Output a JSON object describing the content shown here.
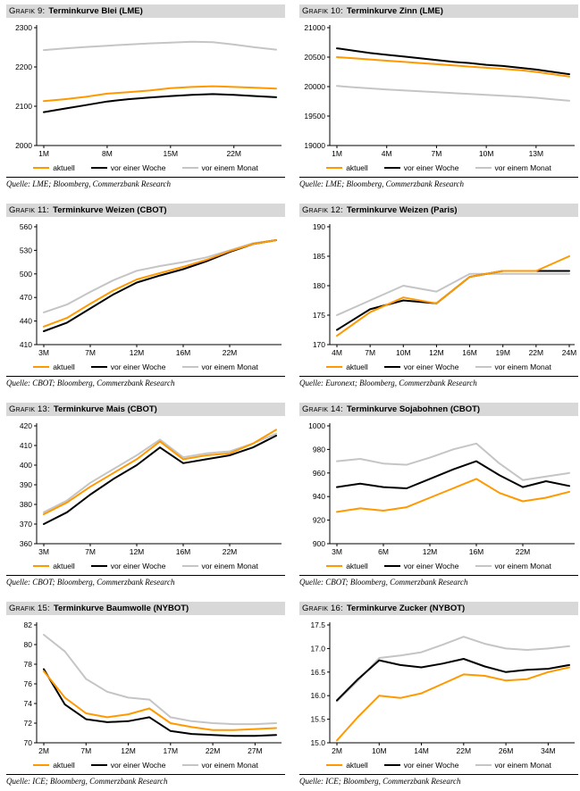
{
  "colors": {
    "accent_orange": "#FF9900",
    "series_black": "#000000",
    "series_gray": "#C5C5C5",
    "header_bg": "#D8D8D8"
  },
  "legend_labels": [
    "aktuell",
    "vor einer Woche",
    "vor einem Monat"
  ],
  "chart_data": [
    {
      "id": "grafik-9",
      "type": "line",
      "header_label": "Grafik 9:",
      "title": "Terminkurve Blei (LME)",
      "source": "Quelle: LME; Bloomberg, Commerzbank Research",
      "ylim": [
        2000,
        2300
      ],
      "yticks": [
        "2000",
        "2100",
        "2200",
        "2300"
      ],
      "xticks": [
        {
          "i": 0,
          "label": "1M"
        },
        {
          "i": 3,
          "label": "8M"
        },
        {
          "i": 6,
          "label": "15M"
        },
        {
          "i": 9,
          "label": "22M"
        }
      ],
      "series": [
        {
          "name": "aktuell",
          "color": "#FF9900",
          "values": [
            2113,
            2118,
            2124,
            2132,
            2136,
            2140,
            2146,
            2149,
            2151,
            2149,
            2147,
            2145
          ]
        },
        {
          "name": "vor einer Woche",
          "color": "#000000",
          "values": [
            2085,
            2094,
            2103,
            2112,
            2118,
            2122,
            2126,
            2129,
            2131,
            2129,
            2126,
            2123
          ]
        },
        {
          "name": "vor einem Monat",
          "color": "#C5C5C5",
          "values": [
            2243,
            2247,
            2251,
            2254,
            2257,
            2260,
            2262,
            2264,
            2263,
            2257,
            2250,
            2244
          ]
        }
      ]
    },
    {
      "id": "grafik-10",
      "type": "line",
      "header_label": "Grafik 10:",
      "title": "Terminkurve Zinn (LME)",
      "source": "Quelle: LME; Bloomberg, Commerzbank Research",
      "ylim": [
        19000,
        21000
      ],
      "yticks": [
        "19000",
        "19500",
        "20000",
        "20500",
        "21000"
      ],
      "xticks": [
        {
          "i": 0,
          "label": "1M"
        },
        {
          "i": 3,
          "label": "4M"
        },
        {
          "i": 6,
          "label": "7M"
        },
        {
          "i": 9,
          "label": "10M"
        },
        {
          "i": 12,
          "label": "13M"
        }
      ],
      "series": [
        {
          "name": "aktuell",
          "color": "#FF9900",
          "values": [
            20500,
            20480,
            20460,
            20440,
            20420,
            20400,
            20380,
            20360,
            20340,
            20320,
            20300,
            20280,
            20250,
            20210,
            20170
          ]
        },
        {
          "name": "vor einer Woche",
          "color": "#000000",
          "values": [
            20650,
            20610,
            20570,
            20540,
            20510,
            20480,
            20450,
            20420,
            20400,
            20370,
            20350,
            20320,
            20290,
            20250,
            20210
          ]
        },
        {
          "name": "vor einem Monat",
          "color": "#C5C5C5",
          "values": [
            20010,
            19990,
            19970,
            19950,
            19935,
            19920,
            19905,
            19890,
            19875,
            19860,
            19845,
            19830,
            19810,
            19785,
            19760
          ]
        }
      ]
    },
    {
      "id": "grafik-11",
      "type": "line",
      "header_label": "Grafik 11:",
      "title": "Terminkurve Weizen (CBOT)",
      "source": "Quelle: CBOT; Bloomberg, Commerzbank Research",
      "ylim": [
        410,
        560
      ],
      "yticks": [
        "410",
        "440",
        "470",
        "500",
        "530",
        "560"
      ],
      "xticks": [
        {
          "i": 0,
          "label": "3M"
        },
        {
          "i": 2,
          "label": "7M"
        },
        {
          "i": 4,
          "label": "12M"
        },
        {
          "i": 6,
          "label": "16M"
        },
        {
          "i": 8,
          "label": "22M"
        }
      ],
      "series": [
        {
          "name": "aktuell",
          "color": "#FF9900",
          "values": [
            433,
            444,
            462,
            479,
            493,
            501,
            509,
            518,
            529,
            538,
            543
          ]
        },
        {
          "name": "vor einer Woche",
          "color": "#000000",
          "values": [
            427,
            438,
            456,
            474,
            489,
            498,
            506,
            516,
            528,
            538,
            543
          ]
        },
        {
          "name": "vor einem Monat",
          "color": "#C5C5C5",
          "values": [
            451,
            461,
            477,
            492,
            504,
            510,
            515,
            521,
            530,
            539,
            543
          ]
        }
      ]
    },
    {
      "id": "grafik-12",
      "type": "line",
      "header_label": "Grafik 12:",
      "title": "Terminkurve Weizen (Paris)",
      "source": "Quelle: Euronext; Bloomberg, Commerzbank Research",
      "ylim": [
        170,
        190
      ],
      "yticks": [
        "170",
        "175",
        "180",
        "185",
        "190"
      ],
      "xticks": [
        {
          "i": 0,
          "label": "4M"
        },
        {
          "i": 1,
          "label": "7M"
        },
        {
          "i": 2,
          "label": "10M"
        },
        {
          "i": 3,
          "label": "12M"
        },
        {
          "i": 4,
          "label": "16M"
        },
        {
          "i": 5,
          "label": "19M"
        },
        {
          "i": 6,
          "label": "22M"
        },
        {
          "i": 7,
          "label": "24M"
        }
      ],
      "series": [
        {
          "name": "aktuell",
          "color": "#FF9900",
          "values": [
            171.5,
            175.5,
            178.0,
            177.0,
            181.5,
            182.5,
            182.5,
            185.0
          ]
        },
        {
          "name": "vor einer Woche",
          "color": "#000000",
          "values": [
            172.5,
            176.0,
            177.5,
            177.0,
            181.5,
            182.5,
            182.5,
            182.5
          ]
        },
        {
          "name": "vor einem Monat",
          "color": "#C5C5C5",
          "values": [
            175.0,
            177.5,
            180.0,
            179.0,
            182.0,
            182.0,
            182.0,
            182.0
          ]
        }
      ]
    },
    {
      "id": "grafik-13",
      "type": "line",
      "header_label": "Grafik 13:",
      "title": "Terminkurve Mais (CBOT)",
      "source": "Quelle: CBOT; Bloomberg, Commerzbank Research",
      "ylim": [
        360,
        420
      ],
      "yticks": [
        "360",
        "370",
        "380",
        "390",
        "400",
        "410",
        "420"
      ],
      "xticks": [
        {
          "i": 0,
          "label": "3M"
        },
        {
          "i": 2,
          "label": "7M"
        },
        {
          "i": 4,
          "label": "12M"
        },
        {
          "i": 6,
          "label": "16M"
        },
        {
          "i": 8,
          "label": "22M"
        }
      ],
      "series": [
        {
          "name": "aktuell",
          "color": "#FF9900",
          "values": [
            375,
            381,
            389,
            396,
            403,
            412,
            403,
            405,
            406,
            411,
            418
          ]
        },
        {
          "name": "vor einer Woche",
          "color": "#000000",
          "values": [
            370,
            376,
            385,
            393,
            400,
            409,
            401,
            403,
            405,
            409,
            415
          ]
        },
        {
          "name": "vor einem Monat",
          "color": "#C5C5C5",
          "values": [
            376,
            382,
            391,
            398,
            405,
            413,
            404,
            406,
            407,
            411,
            416
          ]
        }
      ]
    },
    {
      "id": "grafik-14",
      "type": "line",
      "header_label": "Grafik 14:",
      "title": "Terminkurve Sojabohnen (CBOT)",
      "source": "Quelle: CBOT; Bloomberg, Commerzbank Research",
      "ylim": [
        900,
        1000
      ],
      "yticks": [
        "900",
        "920",
        "940",
        "960",
        "980",
        "1000"
      ],
      "xticks": [
        {
          "i": 0,
          "label": "3M"
        },
        {
          "i": 2,
          "label": "6M"
        },
        {
          "i": 4,
          "label": "12M"
        },
        {
          "i": 6,
          "label": "16M"
        },
        {
          "i": 8,
          "label": "22M"
        }
      ],
      "series": [
        {
          "name": "aktuell",
          "color": "#FF9900",
          "values": [
            927,
            930,
            928,
            931,
            939,
            947,
            955,
            943,
            936,
            939,
            944
          ]
        },
        {
          "name": "vor einer Woche",
          "color": "#000000",
          "values": [
            948,
            951,
            948,
            947,
            955,
            963,
            970,
            958,
            948,
            953,
            949
          ]
        },
        {
          "name": "vor einem Monat",
          "color": "#C5C5C5",
          "values": [
            970,
            972,
            968,
            967,
            973,
            980,
            985,
            968,
            954,
            957,
            960
          ]
        }
      ]
    },
    {
      "id": "grafik-15",
      "type": "line",
      "header_label": "Grafik 15:",
      "title": "Terminkurve Baumwolle (NYBOT)",
      "source": "Quelle: ICE; Bloomberg, Commerzbank Research",
      "ylim": [
        70,
        82
      ],
      "yticks": [
        "70",
        "72",
        "74",
        "76",
        "78",
        "80",
        "82"
      ],
      "xticks": [
        {
          "i": 0,
          "label": "2M"
        },
        {
          "i": 2,
          "label": "7M"
        },
        {
          "i": 4,
          "label": "12M"
        },
        {
          "i": 6,
          "label": "17M"
        },
        {
          "i": 8,
          "label": "22M"
        },
        {
          "i": 10,
          "label": "27M"
        }
      ],
      "series": [
        {
          "name": "aktuell",
          "color": "#FF9900",
          "values": [
            77.3,
            74.6,
            73.0,
            72.6,
            72.9,
            73.5,
            72.0,
            71.6,
            71.3,
            71.3,
            71.4,
            71.5
          ]
        },
        {
          "name": "vor einer Woche",
          "color": "#000000",
          "values": [
            77.5,
            73.9,
            72.4,
            72.1,
            72.2,
            72.6,
            71.2,
            70.9,
            70.8,
            70.7,
            70.7,
            70.8
          ]
        },
        {
          "name": "vor einem Monat",
          "color": "#C5C5C5",
          "values": [
            81.0,
            79.3,
            76.5,
            75.2,
            74.6,
            74.4,
            72.6,
            72.2,
            72.0,
            71.9,
            71.9,
            72.0
          ]
        }
      ]
    },
    {
      "id": "grafik-16",
      "type": "line",
      "header_label": "Grafik 16:",
      "title": "Terminkurve Zucker (NYBOT)",
      "source": "Quelle: ICE; Bloomberg, Commerzbank Research",
      "ylim": [
        15.0,
        17.5
      ],
      "yticks": [
        "15.0",
        "15.5",
        "16.0",
        "16.5",
        "17.0",
        "17.5"
      ],
      "xticks": [
        {
          "i": 0,
          "label": "2M"
        },
        {
          "i": 2,
          "label": "10M"
        },
        {
          "i": 4,
          "label": "14M"
        },
        {
          "i": 6,
          "label": "22M"
        },
        {
          "i": 8,
          "label": "26M"
        },
        {
          "i": 10,
          "label": "34M"
        }
      ],
      "series": [
        {
          "name": "aktuell",
          "color": "#FF9900",
          "values": [
            15.05,
            15.55,
            16.0,
            15.95,
            16.05,
            16.25,
            16.45,
            16.42,
            16.32,
            16.35,
            16.5,
            16.6
          ]
        },
        {
          "name": "vor einer Woche",
          "color": "#000000",
          "values": [
            15.9,
            16.35,
            16.75,
            16.65,
            16.6,
            16.68,
            16.78,
            16.62,
            16.5,
            16.55,
            16.57,
            16.65
          ]
        },
        {
          "name": "vor einem Monat",
          "color": "#C5C5C5",
          "values": [
            15.88,
            16.32,
            16.8,
            16.85,
            16.92,
            17.08,
            17.25,
            17.1,
            17.0,
            16.97,
            17.0,
            17.05
          ]
        }
      ]
    }
  ]
}
